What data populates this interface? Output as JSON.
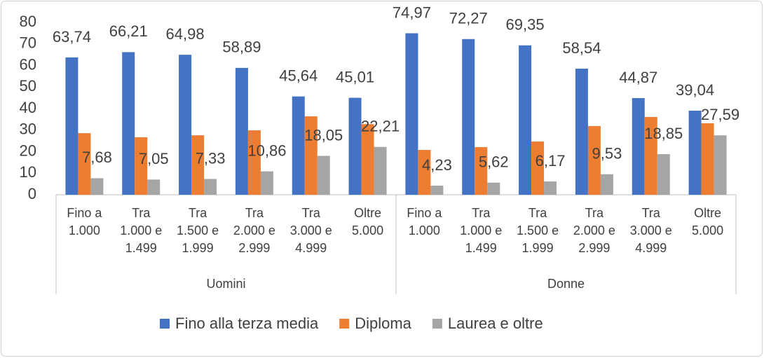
{
  "chart_data": {
    "type": "bar",
    "categories": [
      "Fino a 1.000",
      "Tra 1.000 e 1.499",
      "Tra 1.500 e 1.999",
      "Tra 2.000 e 2.999",
      "Tra 3.000 e 4.999",
      "Oltre 5.000",
      "Fino a 1.000",
      "Tra 1.000 e 1.499",
      "Tra 1.500 e 1.999",
      "Tra 2.000 e 2.999",
      "Tra 3.000 e 4.999",
      "Oltre 5.000"
    ],
    "category_groups": [
      "Uomini",
      "Donne"
    ],
    "series": [
      {
        "name": "Fino alla terza media",
        "color": "#4472c4",
        "values": [
          63.74,
          66.21,
          64.98,
          58.89,
          45.64,
          45.01,
          74.97,
          72.27,
          69.35,
          58.54,
          44.87,
          39.04
        ],
        "value_labels": [
          "63,74",
          "66,21",
          "64,98",
          "58,89",
          "45,64",
          "45,01",
          "74,97",
          "72,27",
          "69,35",
          "58,54",
          "44,87",
          "39,04"
        ]
      },
      {
        "name": "Diploma",
        "color": "#ed7d31",
        "values": [
          28.6,
          26.7,
          27.6,
          29.9,
          36.4,
          32.8,
          20.8,
          22.1,
          24.7,
          31.9,
          36.1,
          33.2
        ]
      },
      {
        "name": "Laurea e oltre",
        "color": "#a5a5a5",
        "values": [
          7.68,
          7.05,
          7.33,
          10.86,
          18.05,
          22.21,
          4.23,
          5.62,
          6.17,
          9.53,
          18.85,
          27.59
        ],
        "value_labels": [
          "7,68",
          "7,05",
          "7,33",
          "10,86",
          "18,05",
          "22,21",
          "4,23",
          "5,62",
          "6,17",
          "9,53",
          "18,85",
          "27,59"
        ]
      }
    ],
    "ylim": [
      0,
      80
    ],
    "yticks": [
      0,
      10,
      20,
      30,
      40,
      50,
      60,
      70,
      80
    ],
    "grid": false,
    "legend": "bottom"
  }
}
